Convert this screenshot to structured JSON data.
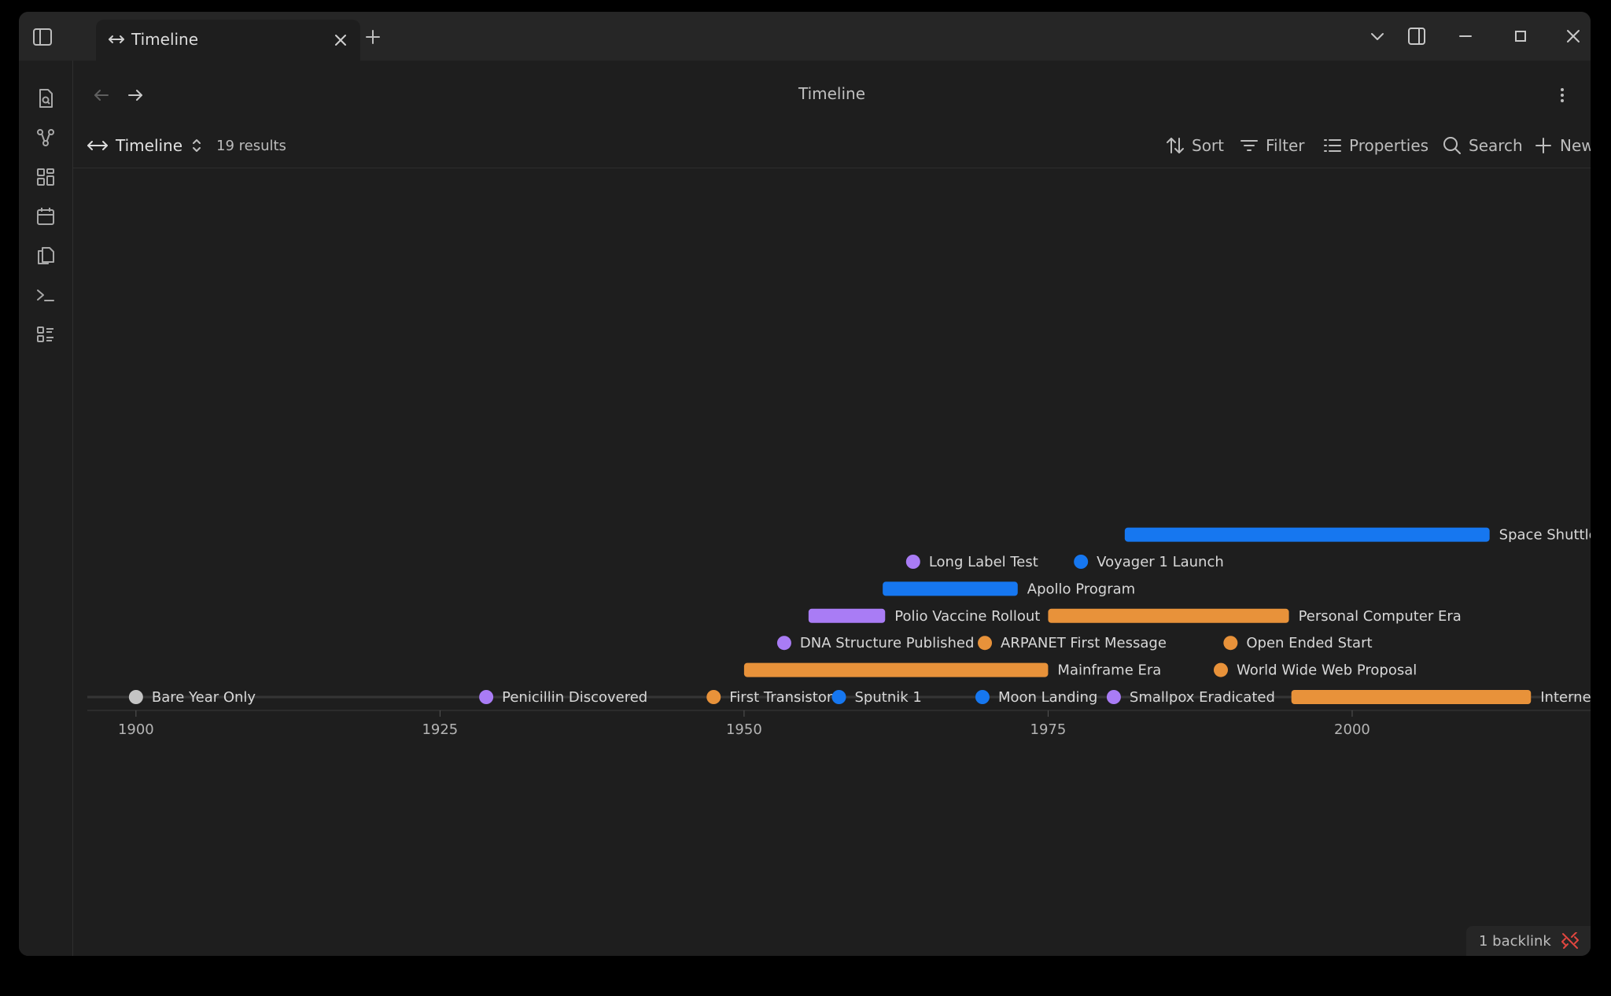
{
  "tab": {
    "title": "Timeline"
  },
  "header": {
    "title": "Timeline"
  },
  "toolbar": {
    "view_name": "Timeline",
    "results": "19 results",
    "sort": "Sort",
    "filter": "Filter",
    "properties": "Properties",
    "search": "Search",
    "new": "New"
  },
  "colors": {
    "blue": "#1677f0",
    "orange": "#e8923a",
    "purple": "#a97cf5",
    "gray": "#c4c4c4",
    "accent_red": "#e0463f"
  },
  "chart_data": {
    "type": "timeline",
    "x_axis": {
      "min": 1896,
      "max": 2019.6,
      "ticks": [
        1900,
        1925,
        1950,
        1975,
        2000
      ]
    },
    "rows": 7,
    "items": [
      {
        "label": "Bare Year Only",
        "kind": "point",
        "start": 1900,
        "row": 0,
        "color": "gray"
      },
      {
        "label": "Penicillin Discovered",
        "kind": "point",
        "start": 1928.8,
        "row": 0,
        "color": "purple"
      },
      {
        "label": "First Transistor",
        "kind": "point",
        "start": 1947.5,
        "row": 0,
        "color": "orange"
      },
      {
        "label": "Sputnik 1",
        "kind": "point",
        "start": 1957.8,
        "row": 0,
        "color": "blue"
      },
      {
        "label": "Moon Landing",
        "kind": "point",
        "start": 1969.6,
        "row": 0,
        "color": "blue"
      },
      {
        "label": "Smallpox Eradicated",
        "kind": "point",
        "start": 1980.4,
        "row": 0,
        "color": "purple"
      },
      {
        "label": "Interne",
        "kind": "range",
        "start": 1995,
        "end": 2014.7,
        "row": 0,
        "color": "orange"
      },
      {
        "label": "Mainframe Era",
        "kind": "range",
        "start": 1950,
        "end": 1975,
        "row": 1,
        "color": "orange"
      },
      {
        "label": "World Wide Web Proposal",
        "kind": "point",
        "start": 1989.2,
        "row": 1,
        "color": "orange"
      },
      {
        "label": "DNA Structure Published",
        "kind": "point",
        "start": 1953.3,
        "row": 2,
        "color": "purple"
      },
      {
        "label": "ARPANET First Message",
        "kind": "point",
        "start": 1969.8,
        "row": 2,
        "color": "orange"
      },
      {
        "label": "Open Ended Start",
        "kind": "point",
        "start": 1990,
        "row": 2,
        "color": "orange"
      },
      {
        "label": "Polio Vaccine Rollout",
        "kind": "range",
        "start": 1955.3,
        "end": 1961.6,
        "row": 3,
        "color": "purple"
      },
      {
        "label": "Personal Computer Era",
        "kind": "range",
        "start": 1975,
        "end": 1994.8,
        "row": 3,
        "color": "orange"
      },
      {
        "label": "Apollo Program",
        "kind": "range",
        "start": 1961.4,
        "end": 1972.5,
        "row": 4,
        "color": "blue"
      },
      {
        "label": "Long Label Test",
        "kind": "point",
        "start": 1963.9,
        "row": 5,
        "color": "purple"
      },
      {
        "label": "Voyager 1 Launch",
        "kind": "point",
        "start": 1977.7,
        "row": 5,
        "color": "blue"
      },
      {
        "label": "Space Shuttle",
        "kind": "range",
        "start": 1981.3,
        "end": 2011.3,
        "row": 6,
        "color": "blue"
      }
    ]
  },
  "footer": {
    "backlinks": "1 backlink"
  }
}
